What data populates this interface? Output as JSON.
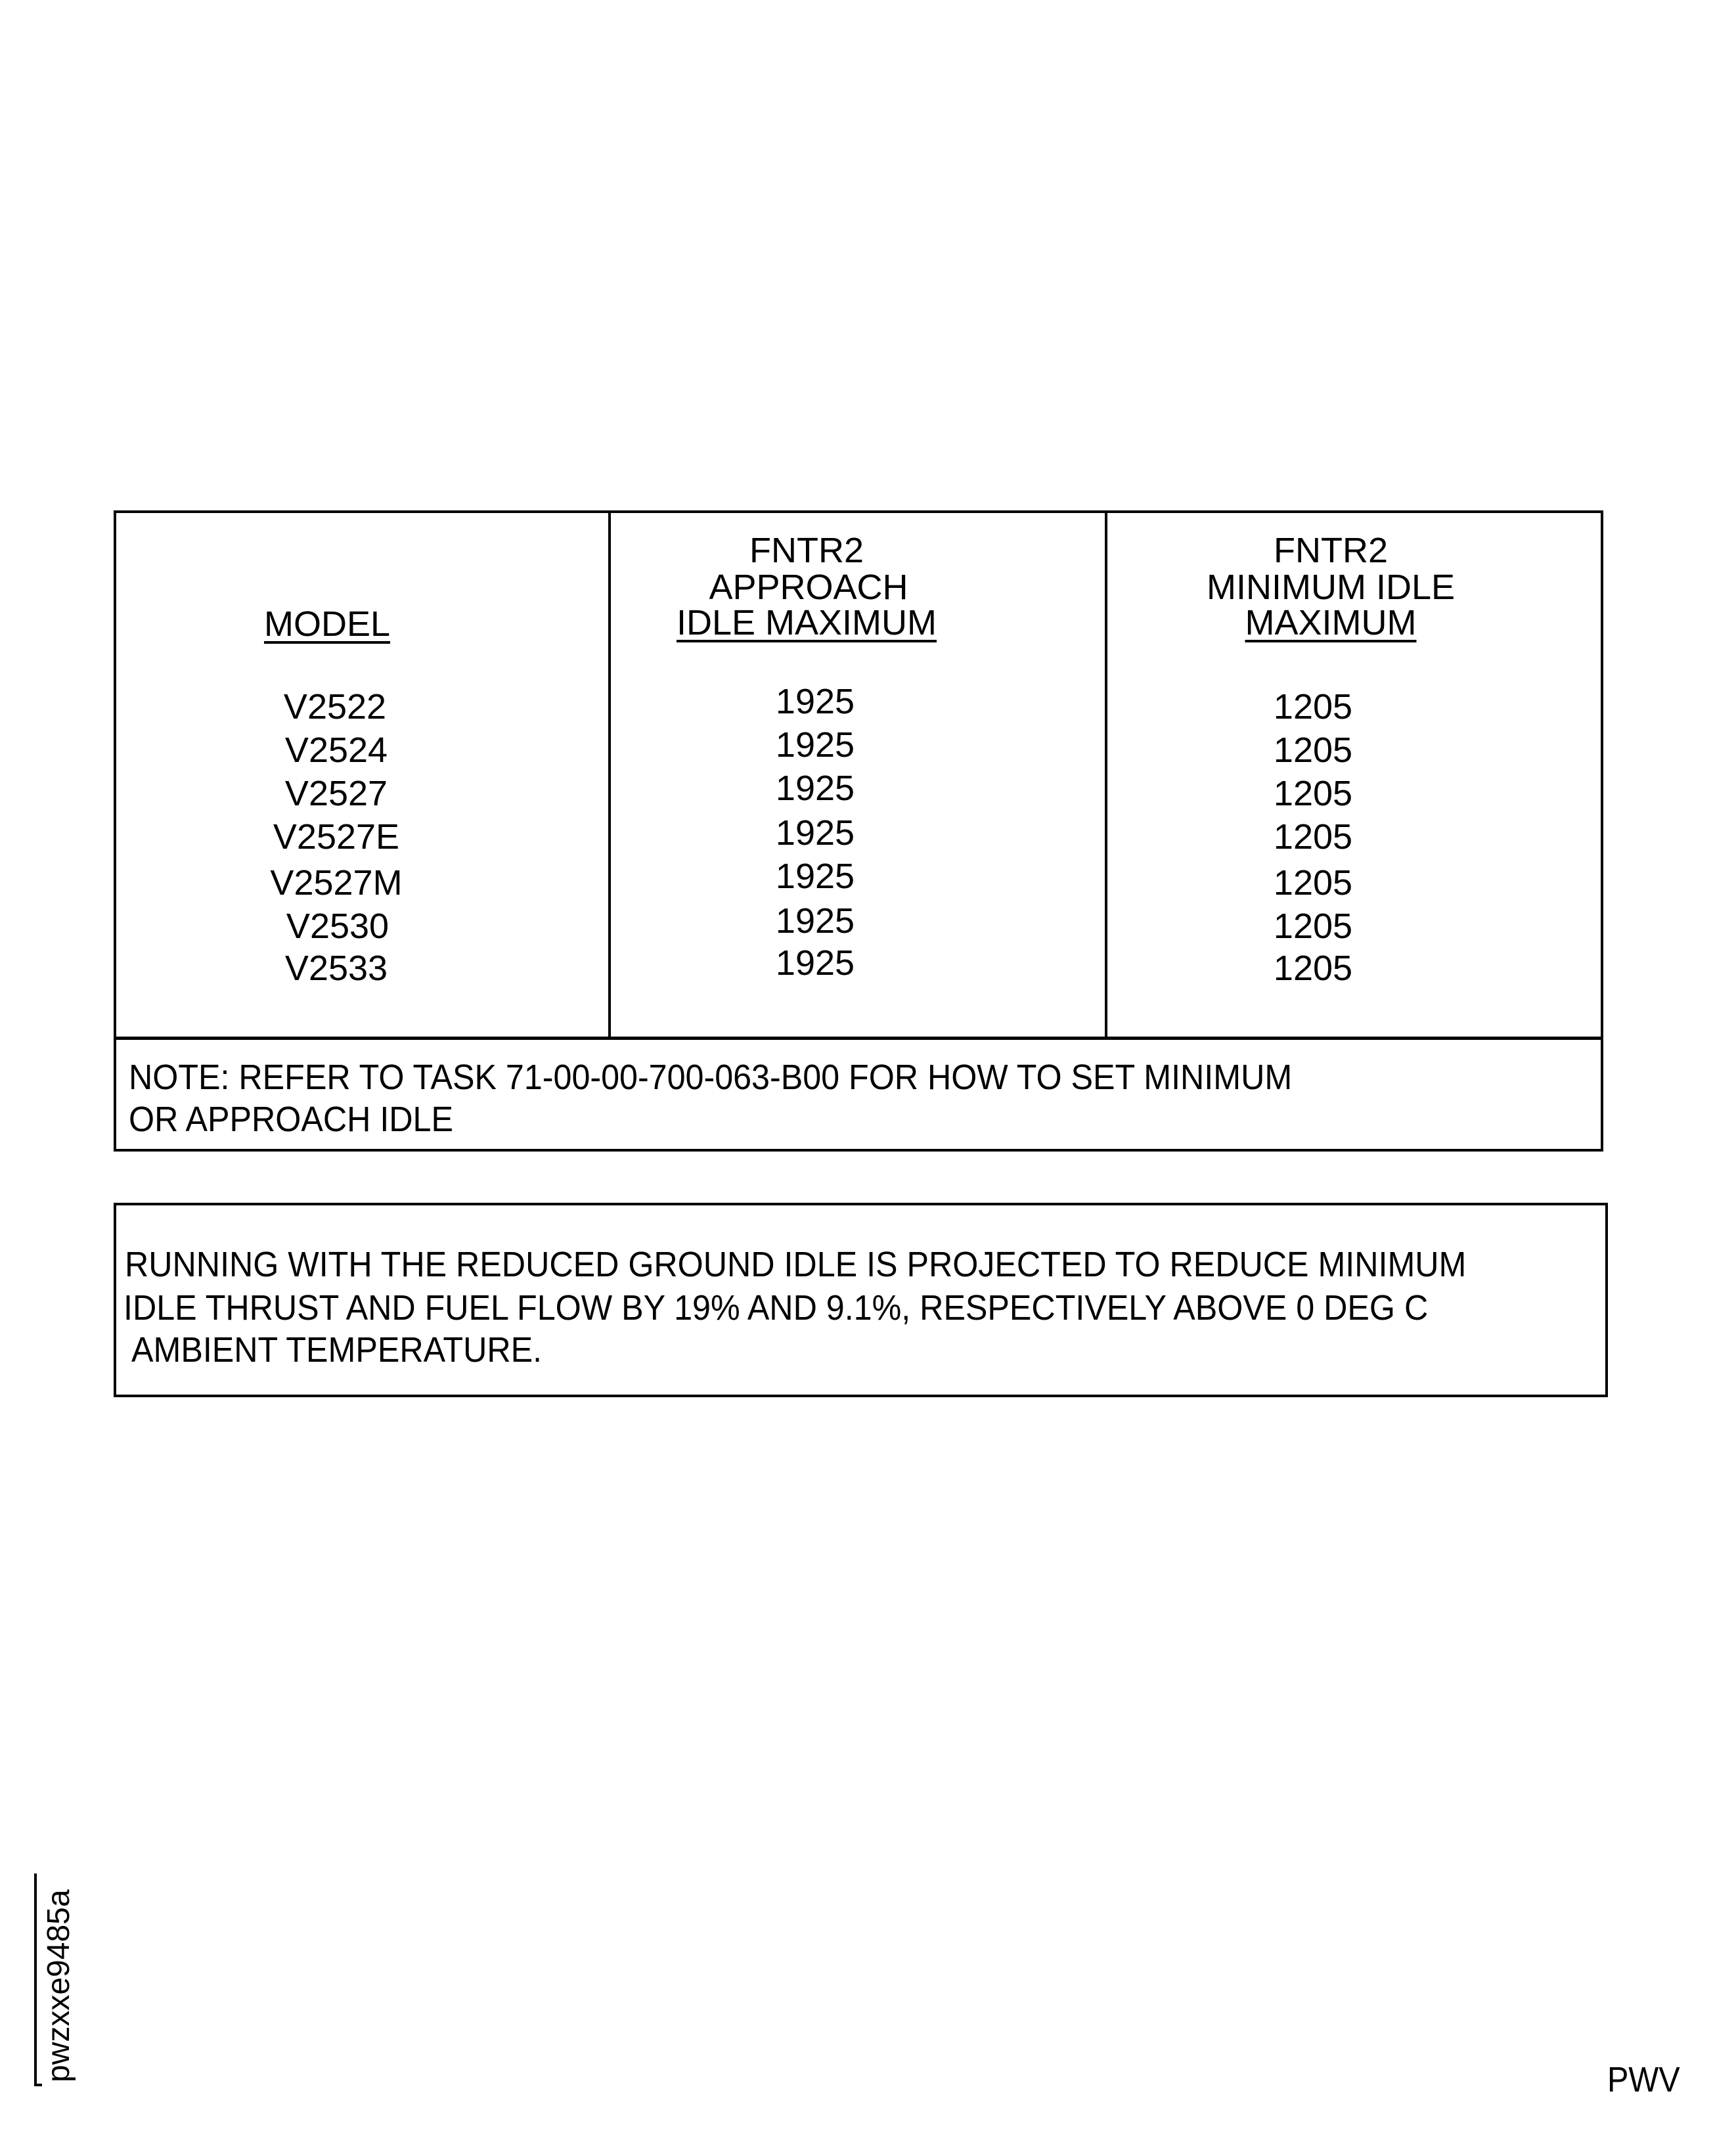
{
  "table": {
    "headers": {
      "model": "MODEL",
      "approach": [
        "FNTR2",
        "APPROACH",
        "IDLE MAXIMUM"
      ],
      "minimum": [
        "FNTR2",
        "MINIMUM IDLE",
        "MAXIMUM"
      ]
    },
    "rows": [
      {
        "model": "V2522",
        "approach": "1925",
        "minimum": "1205"
      },
      {
        "model": "V2524",
        "approach": "1925",
        "minimum": "1205"
      },
      {
        "model": "V2527",
        "approach": "1925",
        "minimum": "1205"
      },
      {
        "model": "V2527E",
        "approach": "1925",
        "minimum": "1205"
      },
      {
        "model": "V2527M",
        "approach": "1925",
        "minimum": "1205"
      },
      {
        "model": "V2530",
        "approach": "1925",
        "minimum": "1205"
      },
      {
        "model": "V2533",
        "approach": "1925",
        "minimum": "1205"
      }
    ],
    "note": [
      "NOTE: REFER TO TASK 71-00-00-700-063-B00 FOR HOW TO SET MINIMUM",
      "OR APPROACH IDLE"
    ]
  },
  "remark": [
    "RUNNING WITH THE REDUCED GROUND IDLE IS PROJECTED TO REDUCE MINIMUM",
    "IDLE THRUST AND FUEL FLOW BY 19% AND 9.1%, RESPECTIVELY ABOVE 0 DEG C",
    "AMBIENT TEMPERATURE."
  ],
  "figure_id": "pwzxxe9485a",
  "footer_code": "PWV"
}
